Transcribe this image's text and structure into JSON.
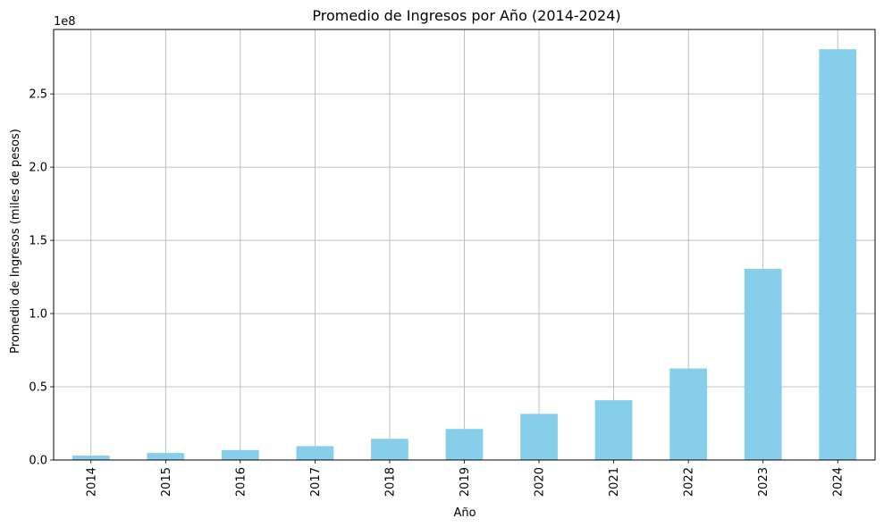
{
  "chart_data": {
    "type": "bar",
    "title": "Promedio de Ingresos por Año (2014-2024)",
    "xlabel": "Año",
    "ylabel": "Promedio de Ingresos (miles de pesos)",
    "y_offset_label": "1e8",
    "categories": [
      "2014",
      "2015",
      "2016",
      "2017",
      "2018",
      "2019",
      "2020",
      "2021",
      "2022",
      "2023",
      "2024"
    ],
    "values": [
      3000000,
      4800000,
      6800000,
      9500000,
      14500000,
      21200000,
      31500000,
      40800000,
      62500000,
      130500000,
      280500000
    ],
    "ylim": [
      0,
      294000000
    ],
    "y_ticks": [
      0,
      50000000,
      100000000,
      150000000,
      200000000,
      250000000
    ],
    "y_tick_labels": [
      "0.0",
      "0.5",
      "1.0",
      "1.5",
      "2.0",
      "2.5"
    ],
    "grid": true,
    "colors": {
      "bar": "#87ceeb",
      "grid": "#b0b0b0",
      "axis": "#000000"
    }
  }
}
